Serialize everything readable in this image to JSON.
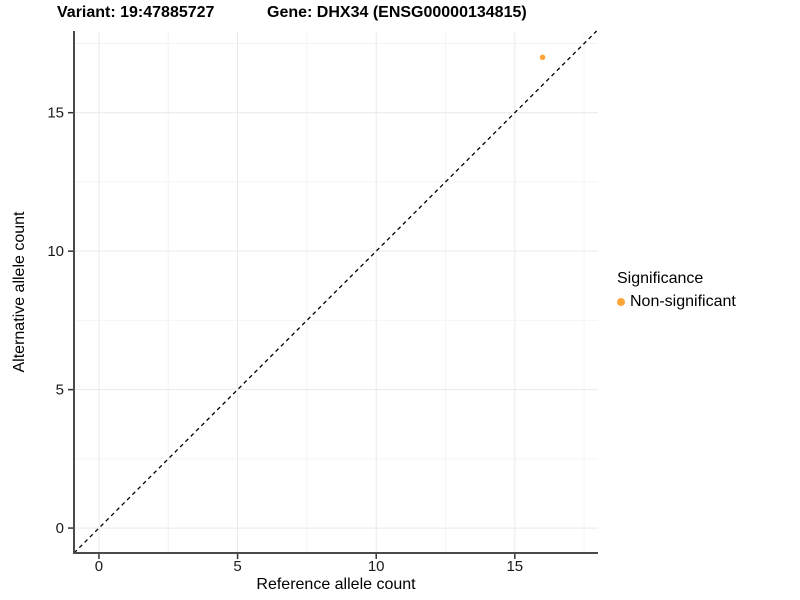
{
  "titles": {
    "variant": "Variant: 19:47885727",
    "gene": "Gene: DHX34 (ENSG00000134815)"
  },
  "chart_data": {
    "type": "scatter",
    "title_left": "Variant: 19:47885727",
    "title_right": "Gene: DHX34 (ENSG00000134815)",
    "xlabel": "Reference allele count",
    "ylabel": "Alternative allele count",
    "xlim": [
      -0.9,
      18.0
    ],
    "ylim": [
      -0.9,
      17.95
    ],
    "xticks": [
      0,
      5,
      10,
      15
    ],
    "yticks": [
      0,
      5,
      10,
      15
    ],
    "xticks_minor": [
      2.5,
      7.5,
      12.5,
      17.5
    ],
    "yticks_minor": [
      2.5,
      7.5,
      12.5,
      17.5
    ],
    "grid": true,
    "points": [
      {
        "x": 16,
        "y": 17,
        "series": "Non-significant"
      }
    ],
    "reference_line": {
      "type": "abline",
      "slope": 1,
      "intercept": 0,
      "style": "dashed",
      "color": "#000000"
    },
    "legend": {
      "title": "Significance",
      "position": "right",
      "entries": [
        {
          "label": "Non-significant",
          "color": "#FDA63A"
        }
      ]
    },
    "colors": {
      "point": "#FDA63A",
      "axis_line": "#4a4a4a",
      "tick": "#333333",
      "tick_label": "#1a1a1a",
      "grid_major": "#e9e9e9",
      "grid_minor": "#f4f4f4",
      "background": "#ffffff"
    }
  }
}
